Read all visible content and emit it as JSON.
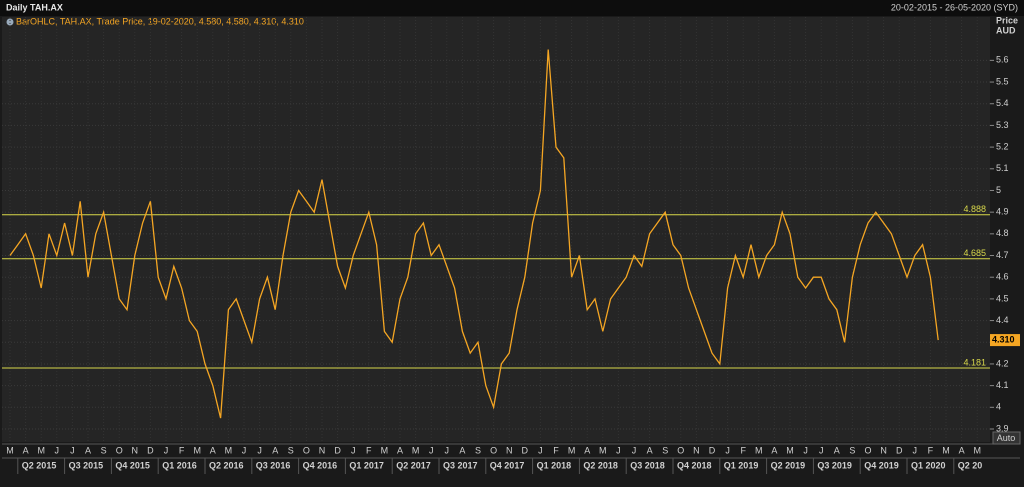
{
  "header": {
    "title": "Daily TAH.AX",
    "date_range": "20-02-2015 - 26-05-2020 (SYD)"
  },
  "chart_data": {
    "type": "line",
    "legend_text": "BarOHLC, TAH.AX, Trade Price, 19-02-2020, 4.580, 4.580, 4.310, 4.310",
    "y_label": [
      "Price",
      "AUD"
    ],
    "categories": [
      "M",
      null,
      "A",
      null,
      "M",
      null,
      "J",
      null,
      "J",
      null,
      "A",
      null,
      "S",
      null,
      "O",
      null,
      "N",
      null,
      "D",
      null,
      "J",
      null,
      "F",
      null,
      "M",
      null,
      "A",
      null,
      "M",
      null,
      "J",
      null,
      "J",
      null,
      "A",
      null,
      "S",
      null,
      "O",
      null,
      "N",
      null,
      "D",
      null,
      "J",
      null,
      "F",
      null,
      "M",
      null,
      "A",
      null,
      "M",
      null,
      "J",
      null,
      "J",
      null,
      "A",
      null,
      "S",
      null,
      "O",
      null,
      "N",
      null,
      "D",
      null,
      "J",
      null,
      "F",
      null,
      "M",
      null,
      "A",
      null,
      "M",
      null,
      "J",
      null,
      "J",
      null,
      "A",
      null,
      "S",
      null,
      "O",
      null,
      "N",
      null,
      "D",
      null,
      "J",
      null,
      "F",
      null,
      "M",
      null,
      "A",
      null,
      "M",
      null,
      "J",
      null,
      "J",
      null,
      "A",
      null,
      "S",
      null,
      "O",
      null,
      "N",
      null,
      "D",
      null,
      "J",
      null,
      "F",
      null,
      "M",
      null,
      "A",
      null,
      "M",
      null
    ],
    "quarters": [
      "Q2 2015",
      "Q3 2015",
      "Q4 2015",
      "Q1 2016",
      "Q2 2016",
      "Q3 2016",
      "Q4 2016",
      "Q1 2017",
      "Q2 2017",
      "Q3 2017",
      "Q4 2017",
      "Q1 2018",
      "Q2 2018",
      "Q3 2018",
      "Q4 2018",
      "Q1 2019",
      "Q2 2019",
      "Q3 2019",
      "Q4 2019",
      "Q1 2020",
      "Q2 20"
    ],
    "series": [
      {
        "name": "TAH.AX",
        "color": "#f5a623",
        "values": [
          4.7,
          4.75,
          4.8,
          4.7,
          4.55,
          4.8,
          4.7,
          4.85,
          4.7,
          4.95,
          4.6,
          4.8,
          4.9,
          4.7,
          4.5,
          4.45,
          4.7,
          4.85,
          4.95,
          4.6,
          4.5,
          4.65,
          4.55,
          4.4,
          4.35,
          4.2,
          4.1,
          3.95,
          4.45,
          4.5,
          4.4,
          4.3,
          4.5,
          4.6,
          4.45,
          4.7,
          4.9,
          5.0,
          4.95,
          4.9,
          5.05,
          4.85,
          4.65,
          4.55,
          4.7,
          4.8,
          4.9,
          4.75,
          4.35,
          4.3,
          4.5,
          4.6,
          4.8,
          4.85,
          4.7,
          4.75,
          4.65,
          4.55,
          4.35,
          4.25,
          4.3,
          4.1,
          4.0,
          4.2,
          4.25,
          4.45,
          4.6,
          4.85,
          5.0,
          5.65,
          5.2,
          5.15,
          4.6,
          4.7,
          4.45,
          4.5,
          4.35,
          4.5,
          4.55,
          4.6,
          4.7,
          4.65,
          4.8,
          4.85,
          4.9,
          4.75,
          4.7,
          4.55,
          4.45,
          4.35,
          4.25,
          4.2,
          4.55,
          4.7,
          4.6,
          4.75,
          4.6,
          4.7,
          4.75,
          4.9,
          4.8,
          4.6,
          4.55,
          4.6,
          4.6,
          4.5,
          4.45,
          4.3,
          4.6,
          4.75,
          4.85,
          4.9,
          4.85,
          4.8,
          4.7,
          4.6,
          4.7,
          4.75,
          4.6,
          4.31,
          null,
          null,
          null,
          null,
          null,
          null
        ]
      }
    ],
    "levels": [
      4.888,
      4.685,
      4.181
    ],
    "level_color": "#d8d84a",
    "last_price": {
      "value": 4.31,
      "label": "4.310"
    },
    "ylim": [
      3.84,
      5.8
    ],
    "yticks": [
      3.9,
      4,
      4.1,
      4.2,
      4.3,
      4.4,
      4.5,
      4.6,
      4.7,
      4.8,
      4.9,
      5,
      5.1,
      5.2,
      5.3,
      5.4,
      5.5,
      5.6
    ],
    "grid": true,
    "button": "Auto"
  }
}
